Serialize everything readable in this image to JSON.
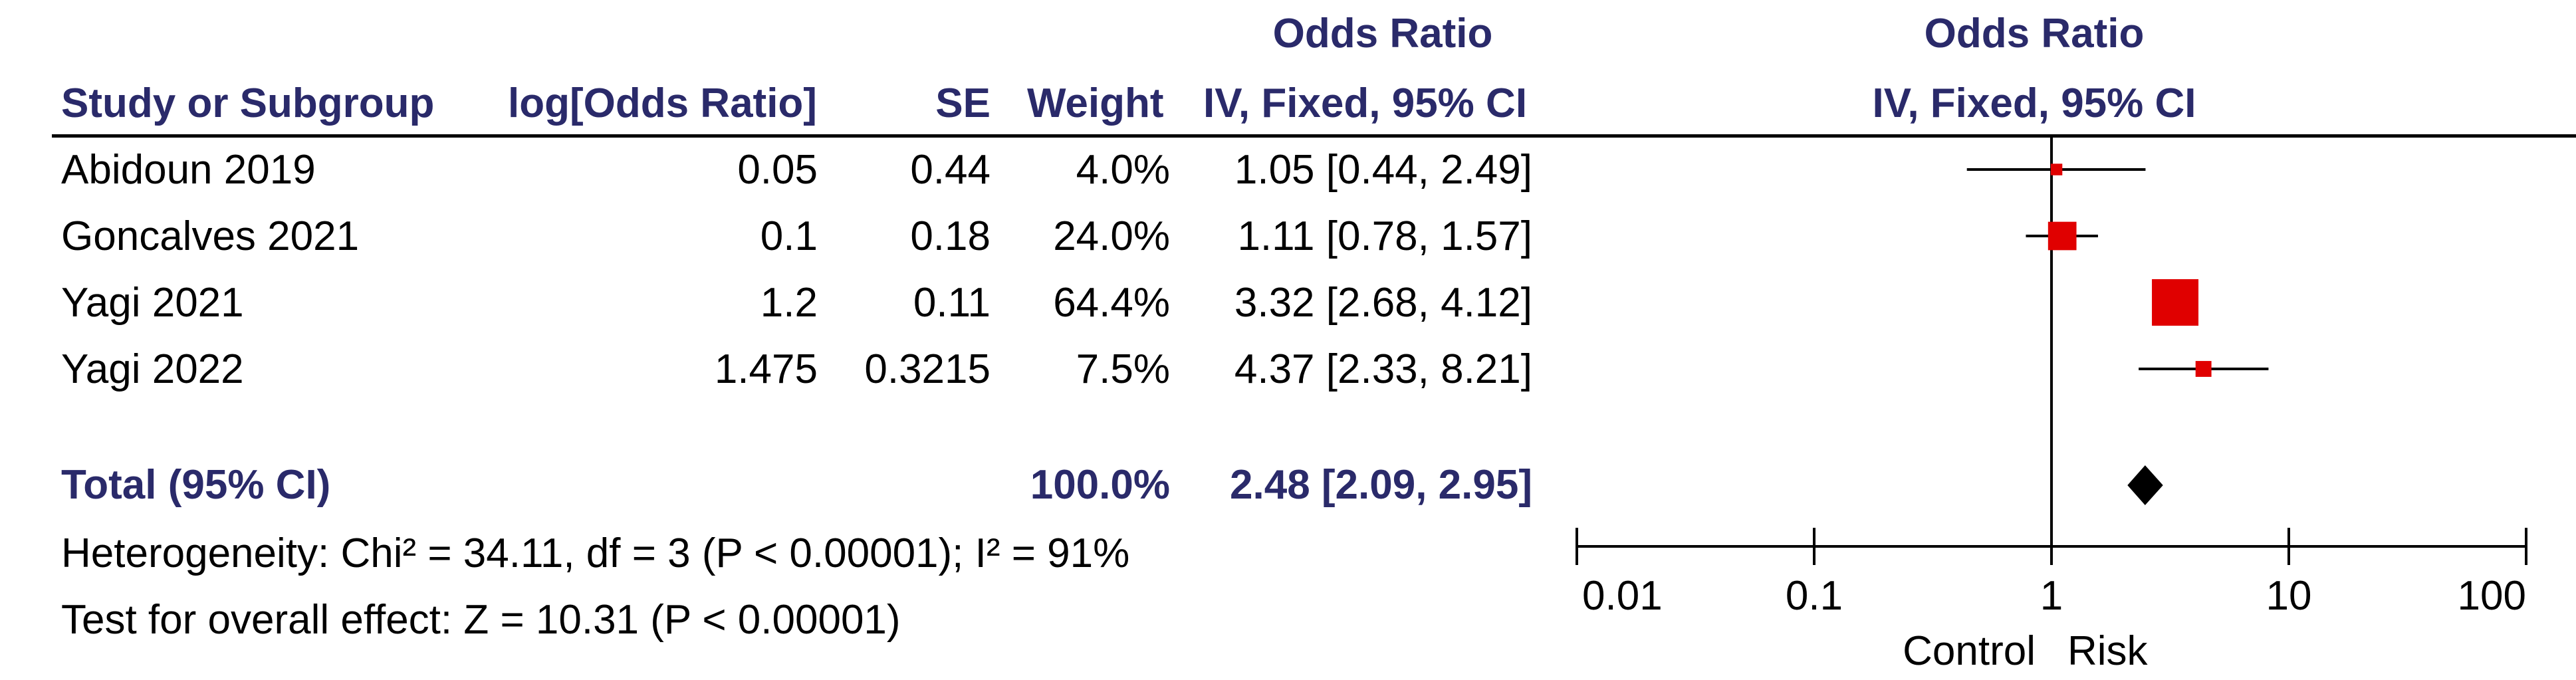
{
  "table": {
    "header_top": {
      "or_data": "Odds Ratio",
      "or_plot": "Odds Ratio"
    },
    "headers": {
      "study": "Study or Subgroup",
      "log_or": "log[Odds Ratio]",
      "se": "SE",
      "weight": "Weight",
      "or_ci": "IV, Fixed, 95% CI",
      "plot_ci": "IV, Fixed, 95% CI"
    },
    "rows": [
      {
        "study": "Abidoun 2019",
        "log_or": "0.05",
        "se": "0.44",
        "weight": "4.0%",
        "or_ci": "1.05 [0.44, 2.49]"
      },
      {
        "study": "Goncalves 2021",
        "log_or": "0.1",
        "se": "0.18",
        "weight": "24.0%",
        "or_ci": "1.11 [0.78, 1.57]"
      },
      {
        "study": "Yagi 2021",
        "log_or": "1.2",
        "se": "0.11",
        "weight": "64.4%",
        "or_ci": "3.32 [2.68, 4.12]"
      },
      {
        "study": "Yagi 2022",
        "log_or": "1.475",
        "se": "0.3215",
        "weight": "7.5%",
        "or_ci": "4.37 [2.33, 8.21]"
      }
    ],
    "total": {
      "label": "Total (95% CI)",
      "weight": "100.0%",
      "or_ci": "2.48 [2.09, 2.95]"
    },
    "heterogeneity": "Heterogeneity: Chi² = 34.11, df = 3 (P < 0.00001); I² = 91%",
    "overall_effect": "Test for overall effect: Z = 10.31 (P < 0.00001)"
  },
  "chart_data": {
    "type": "scatter",
    "scale": "log",
    "xlim": [
      0.01,
      100
    ],
    "x_ticks": [
      "0.01",
      "0.1",
      "1",
      "10",
      "100"
    ],
    "x_tick_values": [
      0.01,
      0.1,
      1,
      10,
      100
    ],
    "null_line": 1,
    "xlabel_left": "Control",
    "xlabel_right": "Risk",
    "marker_color": "#e00000",
    "studies": [
      {
        "name": "Abidoun 2019",
        "or": 1.05,
        "lower": 0.44,
        "upper": 2.49,
        "weight": 4.0
      },
      {
        "name": "Goncalves 2021",
        "or": 1.11,
        "lower": 0.78,
        "upper": 1.57,
        "weight": 24.0
      },
      {
        "name": "Yagi 2021",
        "or": 3.32,
        "lower": 2.68,
        "upper": 4.12,
        "weight": 64.4
      },
      {
        "name": "Yagi 2022",
        "or": 4.37,
        "lower": 2.33,
        "upper": 8.21,
        "weight": 7.5
      }
    ],
    "pooled": {
      "name": "Total (95% CI)",
      "or": 2.48,
      "lower": 2.09,
      "upper": 2.95,
      "weight": 100.0
    }
  }
}
